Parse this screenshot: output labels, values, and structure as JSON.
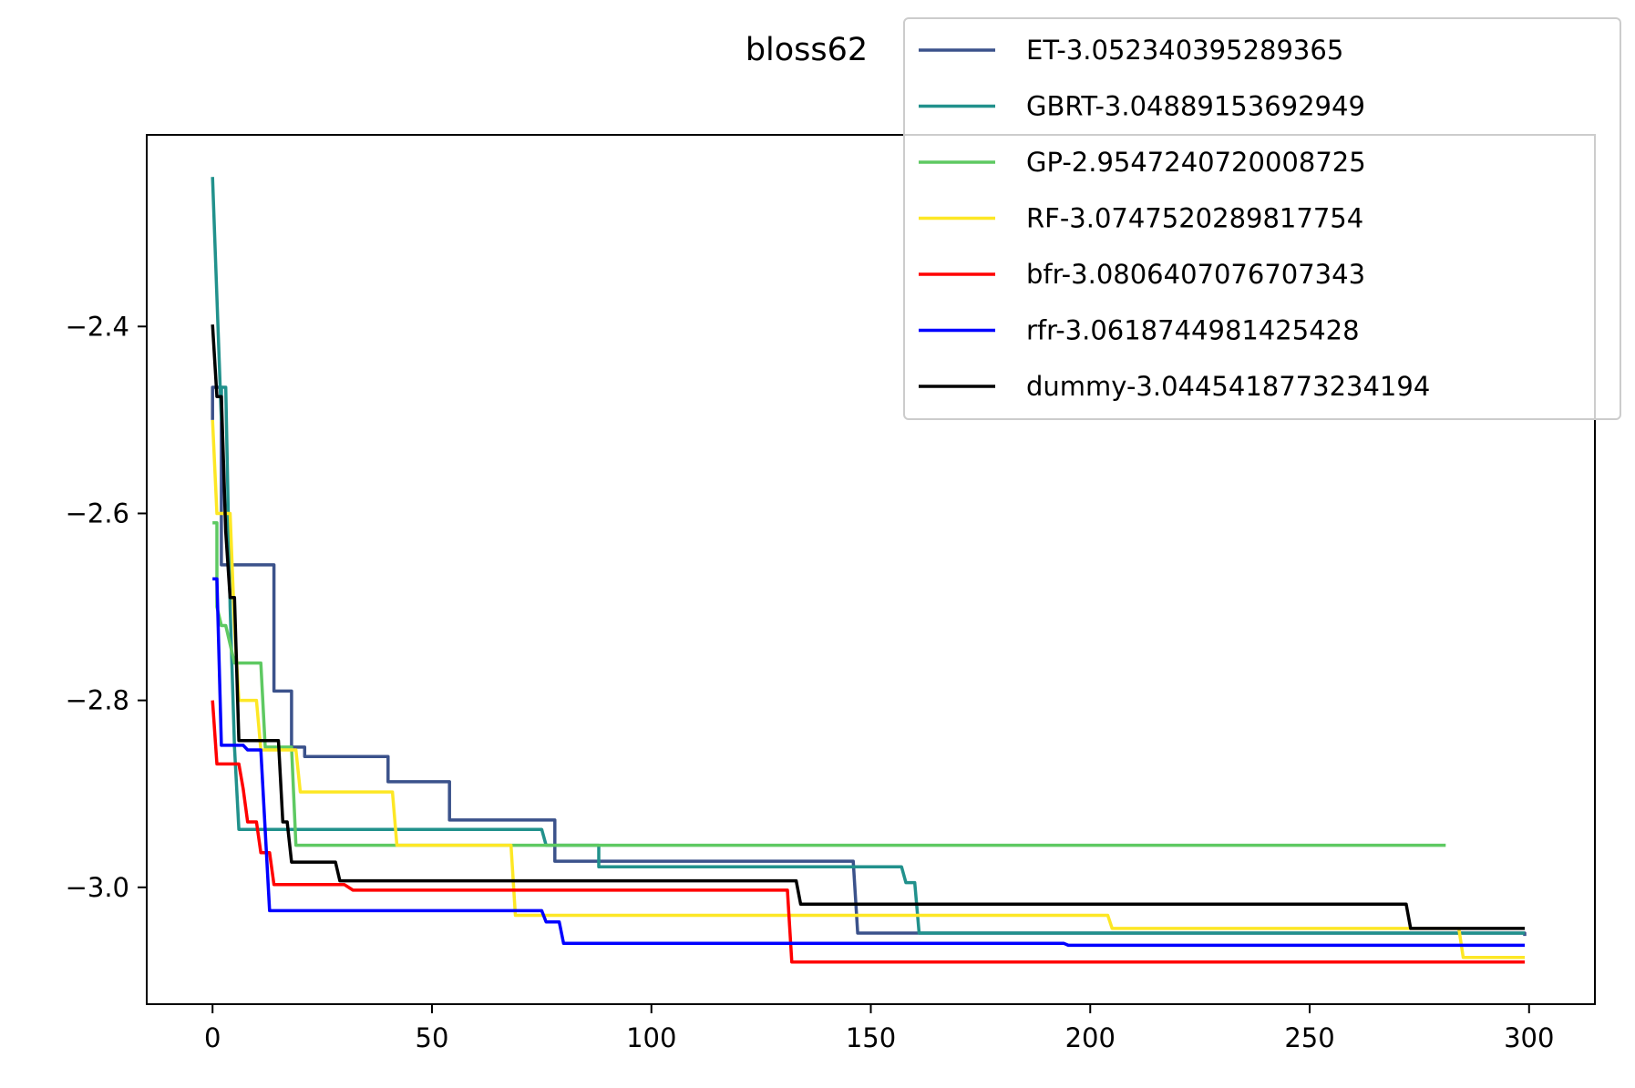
{
  "chart_data": {
    "type": "line",
    "title": "bloss62",
    "xlabel": "",
    "ylabel": "",
    "xlim": [
      -15,
      315
    ],
    "ylim": [
      -3.125,
      -2.195
    ],
    "xticks": [
      0,
      50,
      100,
      150,
      200,
      250,
      300
    ],
    "yticks": [
      -2.4,
      -2.6,
      -2.8,
      -3.0
    ],
    "ytick_labels": [
      "−2.4",
      "−2.6",
      "−2.8",
      "−3.0"
    ],
    "grid": false,
    "legend_placement": "top-right",
    "series": [
      {
        "name": "ET-3.052340395289365",
        "color": "#3b528b",
        "points": [
          [
            0,
            -2.5
          ],
          [
            0,
            -2.465
          ],
          [
            2,
            -2.465
          ],
          [
            2,
            -2.655
          ],
          [
            14,
            -2.655
          ],
          [
            14,
            -2.673
          ],
          [
            14,
            -2.673
          ],
          [
            14,
            -2.79
          ],
          [
            18,
            -2.79
          ],
          [
            18,
            -2.85
          ],
          [
            21,
            -2.85
          ],
          [
            21,
            -2.86
          ],
          [
            40,
            -2.86
          ],
          [
            40,
            -2.887
          ],
          [
            54,
            -2.887
          ],
          [
            54,
            -2.928
          ],
          [
            78,
            -2.928
          ],
          [
            78,
            -2.972
          ],
          [
            146,
            -2.972
          ],
          [
            147,
            -3.049
          ],
          [
            299,
            -3.049
          ],
          [
            299,
            -3.052
          ]
        ]
      },
      {
        "name": "GBRT-3.04889153692949",
        "color": "#21918c",
        "points": [
          [
            0,
            -2.24
          ],
          [
            0,
            -2.24
          ],
          [
            2,
            -2.5
          ],
          [
            2,
            -2.465
          ],
          [
            3,
            -2.465
          ],
          [
            4,
            -2.7
          ],
          [
            5,
            -2.85
          ],
          [
            6,
            -2.938
          ],
          [
            75,
            -2.938
          ],
          [
            76,
            -2.955
          ],
          [
            88,
            -2.955
          ],
          [
            88,
            -2.978
          ],
          [
            157,
            -2.978
          ],
          [
            158,
            -2.995
          ],
          [
            160,
            -2.995
          ],
          [
            161,
            -3.049
          ],
          [
            299,
            -3.049
          ]
        ]
      },
      {
        "name": "GP-2.9547240720008725",
        "color": "#5ec962",
        "points": [
          [
            0,
            -2.61
          ],
          [
            1,
            -2.61
          ],
          [
            1,
            -2.7
          ],
          [
            2,
            -2.72
          ],
          [
            3,
            -2.72
          ],
          [
            5,
            -2.76
          ],
          [
            11,
            -2.76
          ],
          [
            12,
            -2.85
          ],
          [
            18,
            -2.85
          ],
          [
            19,
            -2.955
          ],
          [
            281,
            -2.955
          ]
        ]
      },
      {
        "name": "RF-3.0747520289817754",
        "color": "#fde725",
        "points": [
          [
            0,
            -2.5
          ],
          [
            1,
            -2.6
          ],
          [
            4,
            -2.6
          ],
          [
            5,
            -2.72
          ],
          [
            6,
            -2.8
          ],
          [
            10,
            -2.8
          ],
          [
            11,
            -2.853
          ],
          [
            19,
            -2.853
          ],
          [
            20,
            -2.898
          ],
          [
            41,
            -2.898
          ],
          [
            42,
            -2.955
          ],
          [
            68,
            -2.955
          ],
          [
            69,
            -3.03
          ],
          [
            204,
            -3.03
          ],
          [
            205,
            -3.044
          ],
          [
            284,
            -3.044
          ],
          [
            285,
            -3.075
          ],
          [
            299,
            -3.075
          ]
        ]
      },
      {
        "name": "bfr-3.0806407076707343",
        "color": "#ff0000",
        "points": [
          [
            0,
            -2.8
          ],
          [
            1,
            -2.868
          ],
          [
            6,
            -2.868
          ],
          [
            7,
            -2.895
          ],
          [
            8,
            -2.93
          ],
          [
            10,
            -2.93
          ],
          [
            11,
            -2.963
          ],
          [
            13,
            -2.963
          ],
          [
            14,
            -2.997
          ],
          [
            30,
            -2.997
          ],
          [
            32,
            -3.003
          ],
          [
            131,
            -3.003
          ],
          [
            132,
            -3.08
          ],
          [
            299,
            -3.08
          ]
        ]
      },
      {
        "name": "rfr-3.0618744981425428",
        "color": "#0000ff",
        "points": [
          [
            0,
            -2.67
          ],
          [
            1,
            -2.67
          ],
          [
            2,
            -2.848
          ],
          [
            7,
            -2.848
          ],
          [
            8,
            -2.853
          ],
          [
            11,
            -2.853
          ],
          [
            13,
            -3.025
          ],
          [
            75,
            -3.025
          ],
          [
            76,
            -3.037
          ],
          [
            79,
            -3.037
          ],
          [
            80,
            -3.06
          ],
          [
            194,
            -3.06
          ],
          [
            195,
            -3.062
          ],
          [
            299,
            -3.062
          ]
        ]
      },
      {
        "name": "dummy-3.0445418773234194",
        "color": "#000000",
        "points": [
          [
            0,
            -2.398
          ],
          [
            1,
            -2.475
          ],
          [
            2,
            -2.475
          ],
          [
            3,
            -2.62
          ],
          [
            4,
            -2.69
          ],
          [
            5,
            -2.69
          ],
          [
            6,
            -2.843
          ],
          [
            15,
            -2.843
          ],
          [
            16,
            -2.93
          ],
          [
            17,
            -2.93
          ],
          [
            18,
            -2.973
          ],
          [
            28,
            -2.973
          ],
          [
            29,
            -2.993
          ],
          [
            133,
            -2.993
          ],
          [
            134,
            -3.018
          ],
          [
            272,
            -3.018
          ],
          [
            273,
            -3.044
          ],
          [
            299,
            -3.044
          ]
        ]
      }
    ]
  }
}
